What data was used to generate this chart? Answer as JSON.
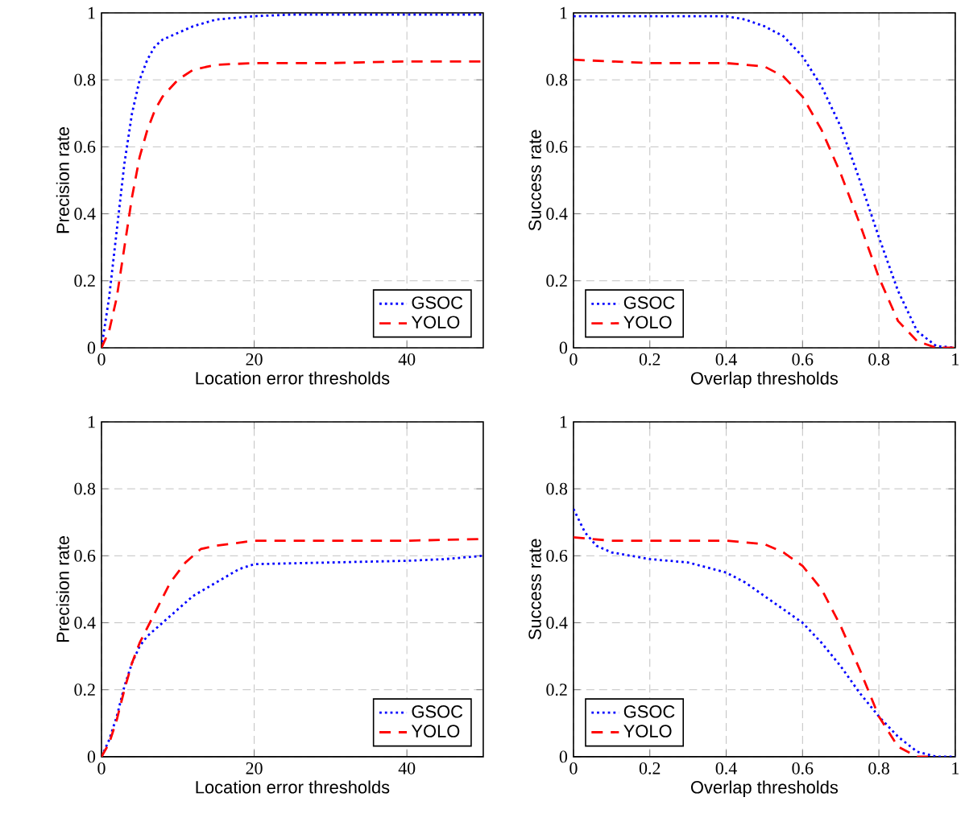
{
  "chart_data": [
    {
      "type": "line",
      "xlabel": "Location error thresholds",
      "ylabel": "Precision rate",
      "xlim": [
        0,
        50
      ],
      "ylim": [
        0,
        1
      ],
      "xticks": [
        0,
        20,
        40
      ],
      "yticks": [
        0,
        0.2,
        0.4,
        0.6,
        0.8,
        1
      ],
      "grid": true,
      "legend": "bottom right",
      "series": [
        {
          "name": "GSOC",
          "color": "#0000ff",
          "line_style": "dotted",
          "x": [
            0,
            1,
            2,
            3,
            4,
            5,
            6,
            7,
            8,
            10,
            12,
            15,
            20,
            25,
            30,
            40,
            50
          ],
          "values": [
            0,
            0.15,
            0.35,
            0.55,
            0.7,
            0.8,
            0.86,
            0.9,
            0.92,
            0.94,
            0.96,
            0.98,
            0.99,
            0.995,
            0.995,
            0.995,
            0.995
          ]
        },
        {
          "name": "YOLO",
          "color": "#ff0000",
          "line_style": "dashed",
          "x": [
            0,
            1,
            2,
            3,
            4,
            5,
            6,
            7,
            8,
            10,
            12,
            15,
            20,
            30,
            40,
            50
          ],
          "values": [
            0,
            0.05,
            0.15,
            0.3,
            0.45,
            0.57,
            0.65,
            0.71,
            0.75,
            0.8,
            0.83,
            0.845,
            0.85,
            0.85,
            0.855,
            0.855
          ]
        }
      ]
    },
    {
      "type": "line",
      "xlabel": "Overlap thresholds",
      "ylabel": "Success rate",
      "xlim": [
        0,
        1
      ],
      "ylim": [
        0,
        1
      ],
      "xticks": [
        0,
        0.2,
        0.4,
        0.6,
        0.8,
        1
      ],
      "yticks": [
        0,
        0.2,
        0.4,
        0.6,
        0.8,
        1
      ],
      "grid": true,
      "legend": "bottom left",
      "series": [
        {
          "name": "GSOC",
          "color": "#0000ff",
          "line_style": "dotted",
          "x": [
            0,
            0.2,
            0.4,
            0.45,
            0.5,
            0.55,
            0.6,
            0.65,
            0.7,
            0.75,
            0.8,
            0.85,
            0.9,
            0.95,
            1
          ],
          "values": [
            0.99,
            0.99,
            0.99,
            0.98,
            0.96,
            0.93,
            0.87,
            0.78,
            0.66,
            0.5,
            0.33,
            0.17,
            0.05,
            0.005,
            0
          ]
        },
        {
          "name": "YOLO",
          "color": "#ff0000",
          "line_style": "dashed",
          "x": [
            0,
            0.2,
            0.4,
            0.5,
            0.55,
            0.6,
            0.65,
            0.7,
            0.75,
            0.8,
            0.85,
            0.9,
            0.95,
            1
          ],
          "values": [
            0.86,
            0.85,
            0.85,
            0.84,
            0.81,
            0.75,
            0.65,
            0.52,
            0.37,
            0.21,
            0.08,
            0.02,
            0,
            0
          ]
        }
      ]
    },
    {
      "type": "line",
      "xlabel": "Location error thresholds",
      "ylabel": "Precision rate",
      "xlim": [
        0,
        50
      ],
      "ylim": [
        0,
        1
      ],
      "xticks": [
        0,
        20,
        40
      ],
      "yticks": [
        0,
        0.2,
        0.4,
        0.6,
        0.8,
        1
      ],
      "grid": true,
      "legend": "bottom right",
      "series": [
        {
          "name": "GSOC",
          "color": "#0000ff",
          "line_style": "dotted",
          "x": [
            0,
            1,
            2,
            3,
            4,
            5,
            6,
            8,
            10,
            12,
            15,
            18,
            20,
            30,
            40,
            45,
            50
          ],
          "values": [
            0,
            0.05,
            0.12,
            0.21,
            0.28,
            0.33,
            0.36,
            0.4,
            0.44,
            0.48,
            0.52,
            0.56,
            0.575,
            0.58,
            0.585,
            0.59,
            0.6
          ]
        },
        {
          "name": "YOLO",
          "color": "#ff0000",
          "line_style": "dashed",
          "x": [
            0,
            1,
            2,
            3,
            4,
            5,
            7,
            9,
            11,
            13,
            15,
            20,
            30,
            40,
            50
          ],
          "values": [
            0,
            0.04,
            0.11,
            0.2,
            0.28,
            0.34,
            0.43,
            0.52,
            0.58,
            0.62,
            0.63,
            0.645,
            0.645,
            0.645,
            0.65
          ]
        }
      ]
    },
    {
      "type": "line",
      "xlabel": "Overlap thresholds",
      "ylabel": "Success rate",
      "xlim": [
        0,
        1
      ],
      "ylim": [
        0,
        1
      ],
      "xticks": [
        0,
        0.2,
        0.4,
        0.6,
        0.8,
        1
      ],
      "yticks": [
        0,
        0.2,
        0.4,
        0.6,
        0.8,
        1
      ],
      "grid": true,
      "legend": "bottom left",
      "series": [
        {
          "name": "GSOC",
          "color": "#0000ff",
          "line_style": "dotted",
          "x": [
            0,
            0.03,
            0.06,
            0.1,
            0.15,
            0.2,
            0.3,
            0.4,
            0.45,
            0.5,
            0.55,
            0.6,
            0.65,
            0.7,
            0.75,
            0.8,
            0.85,
            0.9,
            0.95,
            1
          ],
          "values": [
            0.74,
            0.67,
            0.63,
            0.61,
            0.6,
            0.59,
            0.58,
            0.55,
            0.52,
            0.48,
            0.44,
            0.4,
            0.34,
            0.27,
            0.19,
            0.12,
            0.06,
            0.015,
            0,
            0
          ]
        },
        {
          "name": "YOLO",
          "color": "#ff0000",
          "line_style": "dashed",
          "x": [
            0,
            0.1,
            0.2,
            0.4,
            0.5,
            0.55,
            0.6,
            0.65,
            0.7,
            0.75,
            0.8,
            0.85,
            0.9,
            0.95
          ],
          "values": [
            0.655,
            0.645,
            0.645,
            0.645,
            0.635,
            0.61,
            0.57,
            0.5,
            0.39,
            0.26,
            0.12,
            0.03,
            0,
            0
          ]
        }
      ]
    }
  ]
}
